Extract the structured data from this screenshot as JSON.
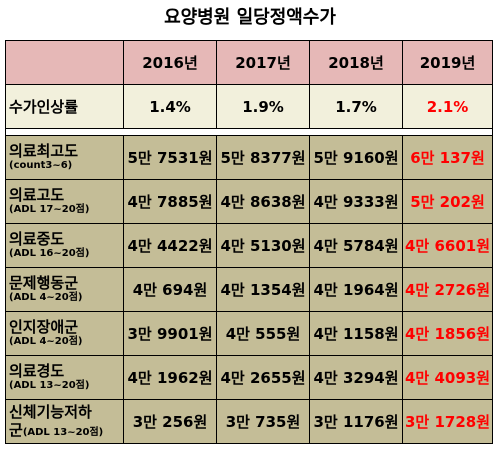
{
  "title": "요양병원 일당정액수가",
  "years": [
    "2016년",
    "2017년",
    "2018년",
    "2019년"
  ],
  "rate_row": {
    "label": "수가인상률",
    "values": [
      "1.4%",
      "1.9%",
      "1.7%",
      "2.1%"
    ]
  },
  "rows": [
    {
      "label": "의료최고도",
      "sub": "(count3~6)",
      "values": [
        "5만 7531원",
        "5만 8377원",
        "5만 9160원",
        "6만 137원"
      ]
    },
    {
      "label": "의료고도",
      "sub": "(ADL 17~20점)",
      "values": [
        "4만 7885원",
        "4만 8638원",
        "4만 9333원",
        "5만 202원"
      ]
    },
    {
      "label": "의료중도",
      "sub": "(ADL 16~20점)",
      "values": [
        "4만 4422원",
        "4만 5130원",
        "4만 5784원",
        "4만 6601원"
      ]
    },
    {
      "label": "문제행동군",
      "sub": "(ADL 4~20점)",
      "values": [
        "4만 694원",
        "4만 1354원",
        "4만 1964원",
        "4만 2726원"
      ]
    },
    {
      "label": "인지장애군",
      "sub": "(ADL 4~20점)",
      "values": [
        "3만 9901원",
        "4만 555원",
        "4만 1158원",
        "4만 1856원"
      ]
    },
    {
      "label": "의료경도",
      "sub": "(ADL 13~20점)",
      "values": [
        "4만 1962원",
        "4만 2655원",
        "4만 3294원",
        "4만 4093원"
      ]
    },
    {
      "label": "신체기능저하",
      "label2": "군",
      "sub": "(ADL 13~20점)",
      "values": [
        "3만 256원",
        "3만 735원",
        "3만 1176원",
        "3만 1728원"
      ]
    }
  ],
  "colors": {
    "header_bg": "#e6b8b7",
    "rate_bg": "#f2f0dc",
    "body_bg": "#c4bd97",
    "highlight_text": "#ff0000"
  }
}
